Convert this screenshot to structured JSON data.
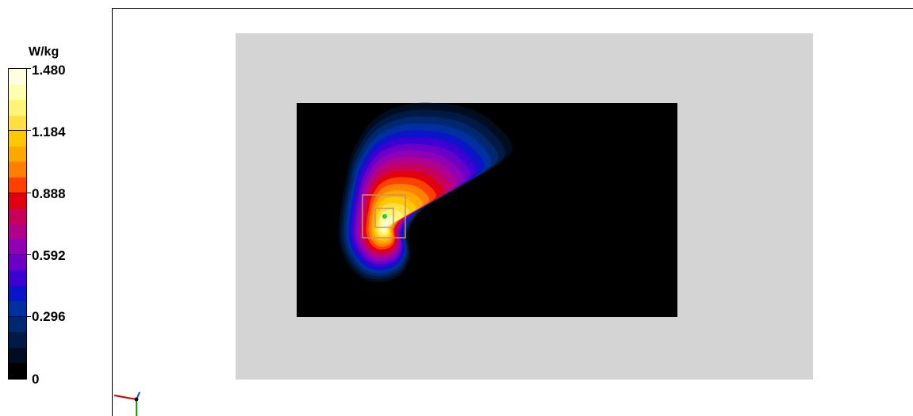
{
  "legend": {
    "unit": "W/kg",
    "ticks": [
      "1.480",
      "1.184",
      "0.888",
      "0.592",
      "0.296",
      "0"
    ],
    "tick_values": [
      1.48,
      1.184,
      0.888,
      0.592,
      0.296,
      0
    ],
    "max": 1.48,
    "min": 0,
    "colors": [
      "#ffffe0",
      "#ffffb0",
      "#fff47a",
      "#ffe040",
      "#ffc800",
      "#ffa800",
      "#ff8000",
      "#ff4000",
      "#e00010",
      "#c8005a",
      "#b0008c",
      "#9000b4",
      "#6a00c8",
      "#3c00d2",
      "#0a14c8",
      "#0030a0",
      "#00286e",
      "#001a46",
      "#000d20",
      "#000000"
    ]
  },
  "scene": {
    "phantom_color": "#d4d4d4",
    "plate_color": "#000000",
    "marker_color": "#c8906e",
    "peak_point_color": "#22cc44"
  },
  "axes": {
    "x_color": "#d00000",
    "y_color": "#1a3cff",
    "z_color": "#00b000"
  }
}
